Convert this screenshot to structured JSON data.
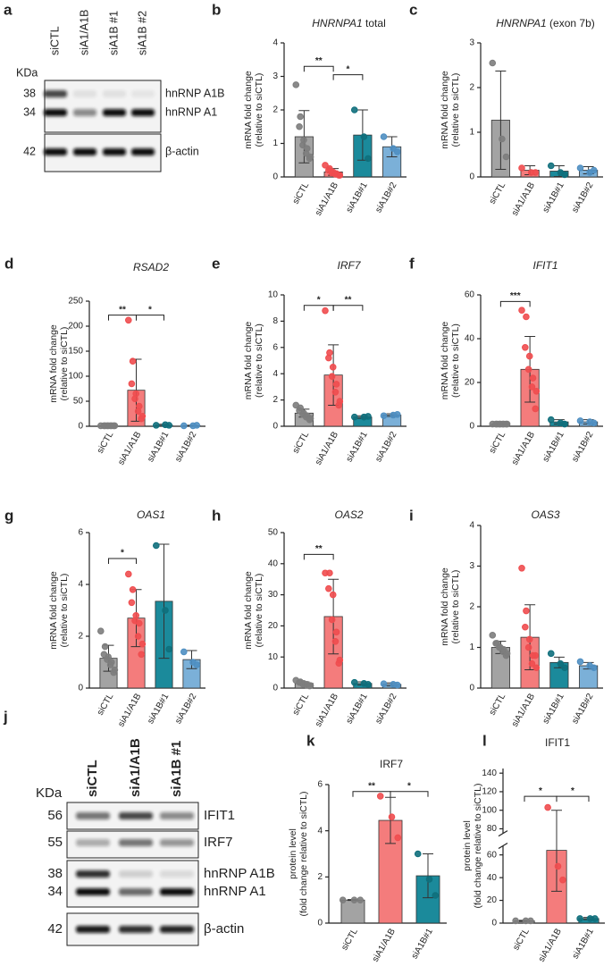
{
  "blots": [
    {
      "panel": "a",
      "unit": "KDa",
      "lanes": [
        "siCTL",
        "siA1/A1B",
        "siA1B #1",
        "siA1B #2"
      ],
      "markers": [
        "38",
        "34",
        "42"
      ],
      "bands": [
        "hnRNP A1B",
        "hnRNP A1",
        "β-actin"
      ]
    },
    {
      "panel": "j",
      "unit": "KDa",
      "lanes": [
        "siCTL",
        "siA1/A1B",
        "siA1B #1"
      ],
      "markers": [
        "56",
        "55",
        "38",
        "34",
        "42"
      ],
      "bands": [
        "IFIT1",
        "IRF7",
        "hnRNP A1B",
        "hnRNP A1",
        "β-actin"
      ]
    }
  ],
  "chart_data": [
    {
      "panel": "b",
      "type": "bar",
      "title": [
        "HNRNPA1",
        " total"
      ],
      "title_italic": [
        true,
        false
      ],
      "ylabel": [
        "mRNA fold change",
        "(relative to siCTL)"
      ],
      "categories": [
        "siCTL",
        "siA1/A1B",
        "siA1B#1",
        "siA1B#2"
      ],
      "values": [
        1.2,
        0.15,
        1.25,
        0.9
      ],
      "errors": [
        0.78,
        0.1,
        0.75,
        0.3
      ],
      "points": [
        [
          2.75,
          1.8,
          1.5,
          1.1,
          0.95,
          0.85,
          0.7,
          0.6,
          0.55
        ],
        [
          0.35,
          0.25,
          0.2,
          0.15,
          0.12,
          0.1,
          0.08,
          0.05,
          0.05
        ],
        [
          2.0,
          1.2,
          0.55
        ],
        [
          1.2,
          0.85,
          0.75
        ]
      ],
      "colors": [
        "#a3a3a3",
        "#f47c7c",
        "#1b8a9b",
        "#7bb0d8"
      ],
      "point_colors": [
        "#7d7d7d",
        "#ef4d4f",
        "#0f6f7c",
        "#4f8fc2"
      ],
      "ylim": [
        0,
        4
      ],
      "yticks": [
        0,
        1,
        2,
        3,
        4
      ],
      "significance": [
        {
          "from": 0,
          "to": 1,
          "level": 3.3,
          "label": "**"
        },
        {
          "from": 1,
          "to": 2,
          "level": 3.05,
          "label": "*"
        }
      ]
    },
    {
      "panel": "c",
      "type": "bar",
      "title": [
        "HNRNPA1",
        " (exon 7b)"
      ],
      "title_italic": [
        true,
        false
      ],
      "ylabel": [
        "mRNA fold change",
        "(relative to siCTL)"
      ],
      "categories": [
        "siCTL",
        "siA1/A1B",
        "siA1B#1",
        "siA1B#2"
      ],
      "values": [
        1.27,
        0.15,
        0.13,
        0.15
      ],
      "errors": [
        1.1,
        0.1,
        0.12,
        0.08
      ],
      "points": [
        [
          2.55,
          0.85,
          0.45
        ],
        [
          0.2,
          0.1,
          0.1
        ],
        [
          0.25,
          0.1,
          0.05
        ],
        [
          0.2,
          0.1,
          0.15
        ]
      ],
      "colors": [
        "#a3a3a3",
        "#f47c7c",
        "#1b8a9b",
        "#7bb0d8"
      ],
      "point_colors": [
        "#7d7d7d",
        "#ef4d4f",
        "#0f6f7c",
        "#4f8fc2"
      ],
      "ylim": [
        0,
        3
      ],
      "yticks": [
        0,
        1,
        2,
        3
      ],
      "significance": []
    },
    {
      "panel": "d",
      "type": "bar",
      "title": [
        "RSAD2"
      ],
      "title_italic": [
        true
      ],
      "ylabel": [
        "mRNA fold change",
        "(relative to siCTL)"
      ],
      "categories": [
        "siCTL",
        "siA1/A1B",
        "siA1B#1",
        "siA1B#2"
      ],
      "values": [
        1,
        72,
        2,
        1
      ],
      "errors": [
        1,
        62,
        2,
        1
      ],
      "points": [
        [
          1,
          1,
          1,
          1,
          1,
          1,
          1,
          1,
          1
        ],
        [
          212,
          130,
          85,
          65,
          55,
          40,
          30,
          20,
          15
        ],
        [
          2,
          3,
          2
        ],
        [
          1,
          1,
          2
        ]
      ],
      "colors": [
        "#a3a3a3",
        "#f47c7c",
        "#1b8a9b",
        "#7bb0d8"
      ],
      "point_colors": [
        "#7d7d7d",
        "#ef4d4f",
        "#0f6f7c",
        "#4f8fc2"
      ],
      "ylim": [
        0,
        250
      ],
      "yticks": [
        0,
        50,
        100,
        150,
        200,
        250
      ],
      "significance": [
        {
          "from": 0,
          "to": 1,
          "level": 222,
          "label": "**"
        },
        {
          "from": 1,
          "to": 2,
          "level": 222,
          "label": "*"
        }
      ]
    },
    {
      "panel": "e",
      "type": "bar",
      "title": [
        "IRF7"
      ],
      "title_italic": [
        true
      ],
      "ylabel": [
        "mRNA fold change",
        "(relative to siCTL)"
      ],
      "categories": [
        "siCTL",
        "siA1/A1B",
        "siA1B#1",
        "siA1B#2"
      ],
      "values": [
        1.0,
        3.9,
        0.7,
        0.85
      ],
      "errors": [
        0.3,
        2.3,
        0.1,
        0.1
      ],
      "points": [
        [
          1.6,
          1.4,
          1.2,
          1.0,
          0.9,
          0.8,
          0.7,
          0.6,
          0.5
        ],
        [
          8.8,
          5.6,
          5.2,
          4.5,
          3.8,
          3.2,
          2.6,
          1.9,
          1.6
        ],
        [
          0.7,
          0.7,
          0.75
        ],
        [
          0.8,
          0.85,
          0.9
        ]
      ],
      "colors": [
        "#a3a3a3",
        "#f47c7c",
        "#1b8a9b",
        "#7bb0d8"
      ],
      "point_colors": [
        "#7d7d7d",
        "#ef4d4f",
        "#0f6f7c",
        "#4f8fc2"
      ],
      "ylim": [
        0,
        10
      ],
      "yticks": [
        0,
        2,
        4,
        6,
        8,
        10
      ],
      "significance": [
        {
          "from": 0,
          "to": 1,
          "level": 9.2,
          "label": "*"
        },
        {
          "from": 1,
          "to": 2,
          "level": 9.2,
          "label": "**"
        }
      ]
    },
    {
      "panel": "f",
      "type": "bar",
      "title": [
        "IFIT1"
      ],
      "title_italic": [
        true
      ],
      "ylabel": [
        "mRNA fold change",
        "(relative to siCTL)"
      ],
      "categories": [
        "siCTL",
        "siA1/A1B",
        "siA1B#1",
        "siA1B#2"
      ],
      "values": [
        1,
        26,
        2,
        2
      ],
      "errors": [
        0.5,
        15,
        1,
        1
      ],
      "points": [
        [
          1,
          1,
          1,
          1,
          1,
          1,
          1,
          1,
          1
        ],
        [
          53,
          50,
          36,
          32,
          26,
          22,
          18,
          16,
          8
        ],
        [
          3,
          1.5,
          1
        ],
        [
          2.5,
          2,
          1.5
        ]
      ],
      "colors": [
        "#a3a3a3",
        "#f47c7c",
        "#1b8a9b",
        "#7bb0d8"
      ],
      "point_colors": [
        "#7d7d7d",
        "#ef4d4f",
        "#0f6f7c",
        "#4f8fc2"
      ],
      "ylim": [
        0,
        60
      ],
      "yticks": [
        0,
        20,
        40,
        60
      ],
      "significance": [
        {
          "from": 0,
          "to": 1,
          "level": 57,
          "label": "***"
        }
      ]
    },
    {
      "panel": "g",
      "type": "bar",
      "title": [
        "OAS1"
      ],
      "title_italic": [
        true
      ],
      "ylabel": [
        "mRNA fold change",
        "(relative to siCTL)"
      ],
      "categories": [
        "siCTL",
        "siA1/A1B",
        "siA1B#1",
        "siA1B#2"
      ],
      "values": [
        1.15,
        2.7,
        3.35,
        1.1
      ],
      "errors": [
        0.5,
        1.1,
        2.2,
        0.35
      ],
      "points": [
        [
          2.2,
          1.6,
          1.3,
          1.2,
          1.1,
          1.0,
          0.9,
          0.7,
          0.6
        ],
        [
          4.4,
          3.8,
          3.3,
          2.8,
          2.6,
          2.5,
          2.0,
          1.7,
          1.3
        ],
        [
          5.5,
          3.0,
          1.5
        ],
        [
          1.4,
          1.0,
          0.9
        ]
      ],
      "colors": [
        "#a3a3a3",
        "#f47c7c",
        "#1b8a9b",
        "#7bb0d8"
      ],
      "point_colors": [
        "#7d7d7d",
        "#ef4d4f",
        "#0f6f7c",
        "#4f8fc2"
      ],
      "ylim": [
        0,
        6
      ],
      "yticks": [
        0,
        2,
        4,
        6
      ],
      "significance": [
        {
          "from": 0,
          "to": 1,
          "level": 5,
          "label": "*"
        }
      ]
    },
    {
      "panel": "h",
      "type": "bar",
      "title": [
        "OAS2"
      ],
      "title_italic": [
        true
      ],
      "ylabel": [
        "mRNA fold change",
        "(relative to siCTL)"
      ],
      "categories": [
        "siCTL",
        "siA1/A1B",
        "siA1B#1",
        "siA1B#2"
      ],
      "values": [
        1.5,
        23,
        1.5,
        1.2
      ],
      "errors": [
        0.5,
        12,
        0.5,
        0.5
      ],
      "points": [
        [
          2.5,
          2,
          1.8,
          1.5,
          1.3,
          1.2,
          1.0,
          0.8,
          0.7
        ],
        [
          37,
          37,
          32,
          30,
          22,
          18,
          15,
          9,
          8
        ],
        [
          1.8,
          1.5,
          1.2
        ],
        [
          1.4,
          1.2,
          1.0
        ]
      ],
      "colors": [
        "#a3a3a3",
        "#f47c7c",
        "#1b8a9b",
        "#7bb0d8"
      ],
      "point_colors": [
        "#7d7d7d",
        "#ef4d4f",
        "#0f6f7c",
        "#4f8fc2"
      ],
      "ylim": [
        0,
        50
      ],
      "yticks": [
        0,
        10,
        20,
        30,
        40,
        50
      ],
      "significance": [
        {
          "from": 0,
          "to": 1,
          "level": 43,
          "label": "**"
        }
      ]
    },
    {
      "panel": "i",
      "type": "bar",
      "title": [
        "OAS3"
      ],
      "title_italic": [
        true
      ],
      "ylabel": [
        "mRNA fold change",
        "(relative to siCTL)"
      ],
      "categories": [
        "siCTL",
        "siA1/A1B",
        "siA1B#1",
        "siA1B#2"
      ],
      "values": [
        1.0,
        1.25,
        0.63,
        0.55
      ],
      "errors": [
        0.15,
        0.8,
        0.13,
        0.08
      ],
      "points": [
        [
          1.3,
          1.1,
          1.1,
          1.0,
          1.0,
          0.95,
          0.9,
          0.85,
          0.8
        ],
        [
          2.95,
          1.9,
          1.5,
          1.2,
          1.0,
          0.8,
          0.6,
          0.5,
          0.8
        ],
        [
          0.85,
          0.6,
          0.5
        ],
        [
          0.65,
          0.55,
          0.5
        ]
      ],
      "colors": [
        "#a3a3a3",
        "#f47c7c",
        "#1b8a9b",
        "#7bb0d8"
      ],
      "point_colors": [
        "#7d7d7d",
        "#ef4d4f",
        "#0f6f7c",
        "#4f8fc2"
      ],
      "ylim": [
        0,
        4
      ],
      "yticks": [
        0,
        1,
        2,
        3,
        4
      ],
      "significance": []
    },
    {
      "panel": "k",
      "type": "bar",
      "title": [
        "IRF7"
      ],
      "title_italic": [
        false
      ],
      "ylabel": [
        "protein level",
        "(fold change relative to siCTL)"
      ],
      "categories": [
        "siCTL",
        "siA1/A1B",
        "siA1B#1"
      ],
      "values": [
        1,
        4.45,
        2.05
      ],
      "errors": [
        0.02,
        1.0,
        0.95
      ],
      "points": [
        [
          1,
          1,
          1
        ],
        [
          5.5,
          4.6,
          3.7
        ],
        [
          3.0,
          1.9,
          1.2
        ]
      ],
      "colors": [
        "#a3a3a3",
        "#f47c7c",
        "#1b8a9b"
      ],
      "point_colors": [
        "#7d7d7d",
        "#ef4d4f",
        "#0f6f7c"
      ],
      "ylim": [
        0,
        6
      ],
      "yticks": [
        0,
        2,
        4,
        6
      ],
      "significance": [
        {
          "from": 0,
          "to": 1,
          "level": 5.7,
          "label": "**"
        },
        {
          "from": 1,
          "to": 2,
          "level": 5.7,
          "label": "*"
        }
      ]
    },
    {
      "panel": "l",
      "type": "bar",
      "title": [
        "IFIT1"
      ],
      "title_italic": [
        false
      ],
      "ylabel": [
        "protein level",
        "(fold change relative to siCTL)"
      ],
      "categories": [
        "siCTL",
        "siA1/A1B",
        "siA1B#1"
      ],
      "values": [
        2,
        64,
        4
      ],
      "errors": [
        0.5,
        36,
        1
      ],
      "points": [
        [
          2,
          2,
          2
        ],
        [
          103,
          50,
          38
        ],
        [
          4,
          4,
          4
        ]
      ],
      "colors": [
        "#a3a3a3",
        "#f47c7c",
        "#1b8a9b"
      ],
      "point_colors": [
        "#7d7d7d",
        "#ef4d4f",
        "#0f6f7c"
      ],
      "ylim": [
        0,
        145
      ],
      "yticks": [
        0,
        20,
        40,
        60,
        80,
        100,
        120,
        140
      ],
      "axis_break": [
        68,
        75
      ],
      "significance": [
        {
          "from": 0,
          "to": 1,
          "level": 115,
          "label": "*"
        },
        {
          "from": 1,
          "to": 2,
          "level": 115,
          "label": "*"
        }
      ]
    }
  ]
}
